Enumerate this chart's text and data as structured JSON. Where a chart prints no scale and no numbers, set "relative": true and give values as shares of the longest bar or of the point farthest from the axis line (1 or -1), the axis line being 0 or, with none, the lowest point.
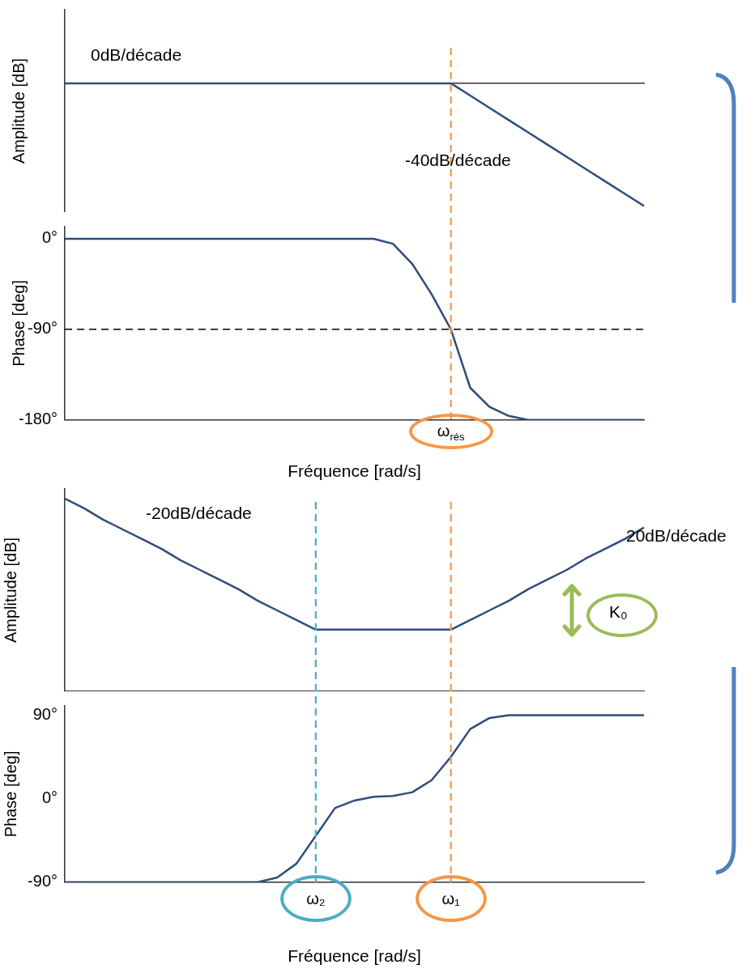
{
  "chart_data": [
    {
      "type": "line",
      "relative": true,
      "ylabel": "Amplitude [dB]",
      "grid": false,
      "legend": false,
      "marker": "none",
      "categories": [
        null,
        null,
        null,
        null,
        null,
        null,
        null,
        null,
        null,
        null,
        null,
        null,
        null,
        null,
        null,
        null,
        null,
        null,
        null,
        null,
        null,
        null,
        null,
        null,
        null,
        null,
        null,
        null,
        null,
        null,
        null
      ],
      "series": [
        {
          "color": "#2e4d7b",
          "values": [
            0,
            0,
            0,
            0,
            0,
            0,
            0,
            0,
            0,
            0,
            0,
            0,
            0,
            0,
            0,
            0,
            0,
            0,
            0,
            0,
            0,
            -0.1,
            -0.2,
            -0.3,
            -0.4,
            -0.5,
            -0.6,
            -0.7,
            -0.8,
            -0.9,
            -1
          ]
        }
      ],
      "annotations": [
        "0dB/décade",
        "-40dB/décade"
      ]
    },
    {
      "type": "line",
      "xlabel": "Fréquence [rad/s]",
      "ylabel": "Phase [deg]",
      "grid": false,
      "legend": false,
      "marker": "none",
      "categories": [
        null,
        null,
        null,
        null,
        null,
        null,
        null,
        null,
        null,
        null,
        null,
        null,
        null,
        null,
        null,
        null,
        null,
        null,
        null,
        null,
        "ω$_{rés}$",
        null,
        null,
        null,
        null,
        null,
        null,
        null,
        null,
        null,
        null
      ],
      "ylim": [
        -180,
        12
      ],
      "yticks": [
        {
          "value": 0,
          "label": "0°"
        },
        {
          "value": -90,
          "label": "-90°"
        },
        {
          "value": -180,
          "label": "-180°"
        }
      ],
      "series": [
        {
          "color": "#2e4d7b",
          "values": [
            0,
            0,
            0,
            0,
            0,
            0,
            0,
            0,
            0,
            0,
            0,
            0,
            0,
            0,
            0,
            0,
            0,
            -5,
            -25,
            -55,
            -90,
            -148,
            -167,
            -176,
            -180,
            -180,
            -180,
            -180,
            -180,
            -180,
            -180
          ]
        }
      ],
      "ref_lines": [
        {
          "axis": "x",
          "value": "ω$_{rés}$",
          "color": "#f79646",
          "line_style": "dashed"
        },
        {
          "axis": "y",
          "value": -90,
          "color": "#000000",
          "line_style": "dashed"
        }
      ]
    },
    {
      "type": "line",
      "relative": true,
      "ylabel": "Amplitude [dB]",
      "grid": false,
      "legend": false,
      "marker": "none",
      "categories": [
        null,
        null,
        null,
        null,
        null,
        null,
        null,
        null,
        null,
        null,
        null,
        null,
        null,
        null,
        null,
        null,
        null,
        null,
        null,
        null,
        null,
        null,
        null,
        null,
        null,
        null,
        null,
        null,
        null,
        null,
        null
      ],
      "series": [
        {
          "color": "#2e4d7b",
          "values": [
            1,
            0.95,
            0.89,
            0.84,
            0.79,
            0.74,
            0.68,
            0.63,
            0.58,
            0.53,
            0.47,
            0.42,
            0.37,
            0.32,
            0.32,
            0.32,
            0.32,
            0.32,
            0.32,
            0.32,
            0.32,
            0.37,
            0.42,
            0.47,
            0.53,
            0.58,
            0.63,
            0.69,
            0.74,
            0.79,
            0.85
          ]
        }
      ],
      "annotations": [
        "-20dB/décade",
        "20dB/décade",
        "K₀"
      ]
    },
    {
      "type": "line",
      "xlabel": "Fréquence [rad/s]",
      "ylabel": "Phase [deg]",
      "grid": false,
      "legend": false,
      "marker": "none",
      "categories": [
        null,
        null,
        null,
        null,
        null,
        null,
        null,
        null,
        null,
        null,
        null,
        null,
        null,
        "ω₂",
        null,
        null,
        null,
        null,
        null,
        null,
        "ω₁",
        null,
        null,
        null,
        null,
        null,
        null,
        null,
        null,
        null,
        null
      ],
      "ylim": [
        -90,
        100
      ],
      "yticks": [
        {
          "value": 90,
          "label": "90°"
        },
        {
          "value": 0,
          "label": "0°"
        },
        {
          "value": -90,
          "label": "-90°"
        }
      ],
      "series": [
        {
          "color": "#2e4d7b",
          "values": [
            -90,
            -90,
            -90,
            -90,
            -90,
            -90,
            -90,
            -90,
            -90,
            -90,
            -90,
            -85,
            -70,
            -40,
            -10,
            -2,
            2,
            3,
            7,
            20,
            45,
            75,
            87,
            90,
            90,
            90,
            90,
            90,
            90,
            90,
            90
          ]
        }
      ],
      "ref_lines": [
        {
          "axis": "x",
          "value": "ω₂",
          "color": "#4bacc6",
          "line_style": "dashed"
        },
        {
          "axis": "x",
          "value": "ω₁",
          "color": "#f79646",
          "line_style": "dashed"
        }
      ]
    }
  ]
}
